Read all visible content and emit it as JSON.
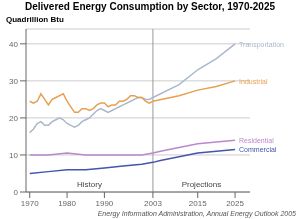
{
  "chart_data": {
    "type": "line",
    "title": "Delivered Energy Consumption by Sector, 1970-2025",
    "y_label": "Quadrillion Btu",
    "source": "Energy Information Administration, Annual Energy Outlook 2005",
    "annotations": [
      {
        "type": "vline",
        "x": 2003
      },
      {
        "type": "text",
        "text": "History"
      },
      {
        "type": "text",
        "text": "Projections"
      }
    ],
    "xlim": [
      1969,
      2029
    ],
    "ylim": [
      0,
      44
    ],
    "xticks": [
      1970,
      1980,
      1990,
      2003,
      2015,
      2025
    ],
    "yticks": [
      0,
      10,
      20,
      30,
      40
    ],
    "grid": true,
    "series": [
      {
        "name": "Transportation",
        "color": "#aab8cc",
        "x": [
          1970,
          1971,
          1972,
          1973,
          1974,
          1975,
          1976,
          1977,
          1978,
          1979,
          1980,
          1981,
          1982,
          1983,
          1984,
          1985,
          1986,
          1987,
          1988,
          1989,
          1990,
          1991,
          1992,
          1993,
          1994,
          1995,
          1996,
          1997,
          1998,
          1999,
          2000,
          2001,
          2002,
          2003,
          2010,
          2015,
          2020,
          2025
        ],
        "values": [
          16,
          17,
          18.5,
          19,
          18,
          18,
          19,
          19.5,
          20,
          19.5,
          18.5,
          18,
          17.5,
          18,
          19,
          19.5,
          20,
          21,
          22,
          22.5,
          22,
          21.5,
          22,
          22.5,
          23,
          23.5,
          24,
          24.5,
          25,
          25.5,
          25.5,
          25,
          25,
          25.5,
          29,
          33,
          36,
          40
        ]
      },
      {
        "name": "Industrial",
        "color": "#e8a050",
        "x": [
          1970,
          1971,
          1972,
          1973,
          1974,
          1975,
          1976,
          1977,
          1978,
          1979,
          1980,
          1981,
          1982,
          1983,
          1984,
          1985,
          1986,
          1987,
          1988,
          1989,
          1990,
          1991,
          1992,
          1993,
          1994,
          1995,
          1996,
          1997,
          1998,
          1999,
          2000,
          2001,
          2002,
          2003,
          2010,
          2015,
          2020,
          2025
        ],
        "values": [
          24.5,
          24,
          24.5,
          26.5,
          25,
          23.5,
          25,
          25.5,
          26,
          26.5,
          24.5,
          23,
          21.5,
          21.5,
          22.5,
          22.5,
          22,
          22.5,
          23.5,
          24,
          24,
          23,
          23.5,
          23.5,
          24.5,
          24.5,
          25,
          26,
          26,
          25.5,
          25.5,
          24.5,
          24,
          24.5,
          26,
          27.5,
          28.5,
          30
        ]
      },
      {
        "name": "Residential",
        "color": "#bb88cc",
        "x": [
          1970,
          1975,
          1980,
          1985,
          1990,
          1995,
          2000,
          2003,
          2005,
          2010,
          2015,
          2020,
          2025
        ],
        "values": [
          10,
          10,
          10.5,
          10,
          10,
          10,
          10,
          10.5,
          11,
          12,
          13,
          13.5,
          14
        ]
      },
      {
        "name": "Commercial",
        "color": "#4455aa",
        "x": [
          1970,
          1975,
          1980,
          1985,
          1990,
          1995,
          2000,
          2003,
          2005,
          2010,
          2015,
          2020,
          2025
        ],
        "values": [
          5,
          5.5,
          6,
          6,
          6.5,
          7,
          7.5,
          8,
          8.5,
          9.5,
          10.5,
          11,
          11.5
        ]
      }
    ]
  }
}
